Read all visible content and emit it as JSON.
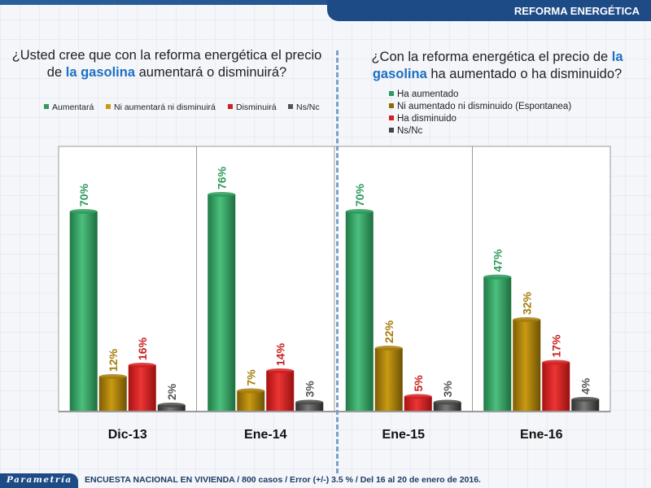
{
  "header": {
    "title": "REFORMA ENERGÉTICA"
  },
  "left_question": {
    "line1": "¿Usted cree que con la reforma energética el precio",
    "line2_pre": "de ",
    "line2_highlight": "la gasolina",
    "line2_post": " aumentará o disminuirá?"
  },
  "right_question": {
    "line1_pre": "¿Con la reforma energética el precio de ",
    "line1_highlight": "la",
    "line2_highlight": "gasolina",
    "line2_post": " ha aumentado o ha disminuido?"
  },
  "legend_left": [
    {
      "label": "Aumentará",
      "color": "#2e9a5c"
    },
    {
      "label": "Ni aumentará ni disminuirá",
      "color": "#c99a12"
    },
    {
      "label": "Disminuirá",
      "color": "#d42020"
    },
    {
      "label": "Ns/Nc",
      "color": "#555555"
    }
  ],
  "legend_right": [
    {
      "label": "Ha aumentado",
      "color": "#2e9a5c"
    },
    {
      "label": "Ni aumentado ni disminuido (Espontanea)",
      "color": "#8a6a0a"
    },
    {
      "label": "Ha disminuido",
      "color": "#d42020"
    },
    {
      "label": "Ns/Nc",
      "color": "#444444"
    }
  ],
  "chart_data": {
    "type": "bar",
    "categories": [
      "Dic-13",
      "Ene-14",
      "Ene-15",
      "Ene-16"
    ],
    "series": [
      {
        "values": [
          70,
          76,
          70,
          47
        ],
        "color": "#2e9a5c",
        "label_color": "#2e9a5c"
      },
      {
        "values": [
          12,
          7,
          22,
          32
        ],
        "color": "#a67c0a",
        "label_color": "#a67c0a"
      },
      {
        "values": [
          16,
          14,
          5,
          17
        ],
        "color": "#d42020",
        "label_color": "#c81e1e"
      },
      {
        "values": [
          2,
          3,
          3,
          4
        ],
        "color": "#4a4a4a",
        "label_color": "#555555"
      }
    ],
    "value_suffix": "%",
    "ylim": [
      0,
      90
    ]
  },
  "footer": {
    "badge": "Parametría",
    "text": "ENCUESTA NACIONAL EN VIVIENDA / 800 casos / Error (+/-) 3.5 % / Del 16 al 20 de enero de 2016."
  }
}
